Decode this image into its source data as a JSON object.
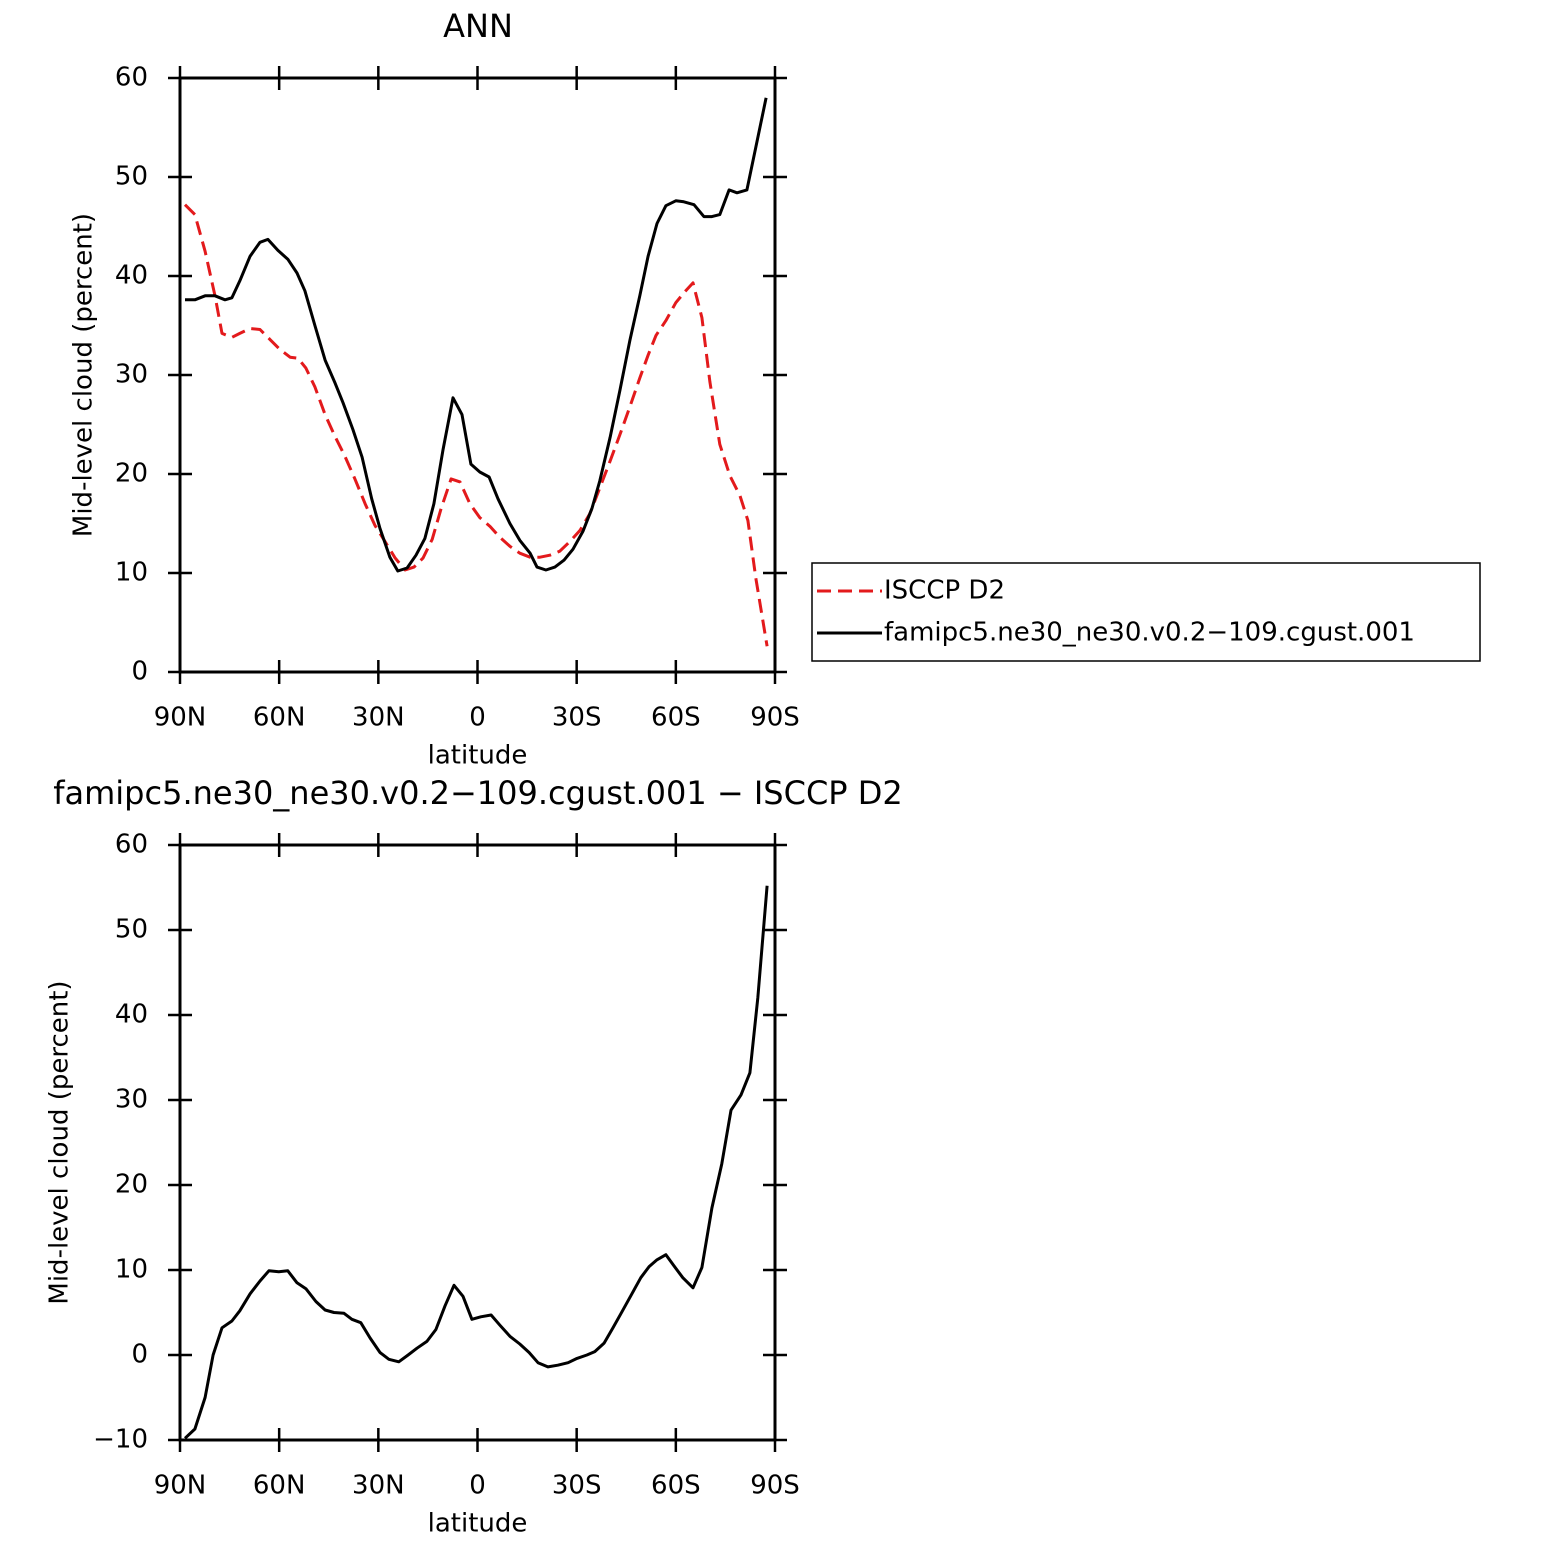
{
  "chart_data": [
    {
      "type": "line",
      "title": "ANN",
      "x_label": "latitude",
      "y_label": "Mid-level cloud (percent)",
      "xlim": [
        90,
        -90
      ],
      "xticks": [
        {
          "value": 90,
          "label": "90N"
        },
        {
          "value": 60,
          "label": "60N"
        },
        {
          "value": 30,
          "label": "30N"
        },
        0,
        {
          "value": -30,
          "label": "30S"
        },
        {
          "value": -60,
          "label": "60S"
        },
        {
          "value": -90,
          "label": "90S"
        }
      ],
      "ylim": [
        0,
        60
      ],
      "yticks": [
        0,
        10,
        20,
        30,
        40,
        50,
        60
      ],
      "legend": "right",
      "series": [
        {
          "name": "ISCCP D2",
          "color": "#e31a1c",
          "dash": true,
          "x": [
            88.5,
            85.5,
            82.4,
            79.4,
            77.3,
            74.3,
            71.9,
            68.8,
            65.8,
            62.8,
            59.8,
            56.7,
            54.3,
            51.9,
            49.2,
            46.1,
            43.1,
            40.1,
            37.1,
            34.0,
            31.0,
            28.0,
            24.9,
            21.9,
            19.2,
            16.5,
            13.7,
            11.0,
            8.0,
            5.3,
            2.3,
            -0.7,
            -3.8,
            -6.8,
            -9.8,
            -12.8,
            -15.9,
            -18.9,
            -21.9,
            -24.9,
            -28.0,
            -31.0,
            -34.0,
            -37.0,
            -40.1,
            -43.1,
            -46.1,
            -49.1,
            -51.6,
            -54.0,
            -57.0,
            -60.0,
            -62.7,
            -65.2,
            -67.9,
            -70.3,
            -73.3,
            -76.4,
            -79.4,
            -81.8,
            -84.2,
            -87.6
          ],
          "values": [
            47.2,
            46.2,
            42.5,
            38.0,
            34.2,
            33.8,
            34.2,
            34.7,
            34.6,
            33.6,
            32.6,
            31.8,
            31.7,
            30.7,
            28.8,
            26.0,
            23.8,
            21.8,
            19.5,
            17.0,
            14.8,
            13.2,
            11.5,
            10.3,
            10.6,
            11.5,
            13.4,
            16.5,
            19.5,
            19.2,
            17.0,
            15.6,
            14.7,
            13.6,
            12.7,
            12.0,
            11.6,
            11.6,
            11.8,
            12.2,
            13.2,
            14.3,
            16.0,
            18.6,
            21.3,
            24.0,
            26.8,
            29.7,
            32.0,
            34.0,
            35.5,
            37.3,
            38.4,
            39.3,
            35.8,
            29.3,
            23.0,
            19.8,
            17.8,
            15.3,
            9.5,
            2.6
          ]
        },
        {
          "name": "famipc5.ne30_ne30.v0.2−109.cgust.001",
          "color": "#000000",
          "dash": false,
          "x": [
            88.5,
            85.5,
            82.4,
            79.4,
            76.4,
            74.3,
            71.9,
            68.8,
            65.8,
            63.4,
            60.4,
            57.4,
            54.6,
            52.2,
            49.2,
            46.1,
            43.1,
            40.7,
            37.7,
            34.9,
            32.0,
            29.5,
            26.5,
            24.1,
            21.3,
            18.6,
            15.9,
            13.2,
            10.4,
            7.4,
            4.7,
            2.0,
            -0.7,
            -3.5,
            -6.2,
            -9.8,
            -12.8,
            -15.9,
            -18.0,
            -20.7,
            -23.4,
            -26.2,
            -28.9,
            -31.9,
            -34.6,
            -37.0,
            -40.1,
            -43.1,
            -46.1,
            -49.1,
            -51.6,
            -54.3,
            -57.0,
            -60.0,
            -62.4,
            -65.5,
            -68.5,
            -70.9,
            -73.3,
            -76.1,
            -78.5,
            -81.5,
            -84.2,
            -87.3
          ],
          "values": [
            37.6,
            37.6,
            38.0,
            38.0,
            37.6,
            37.8,
            39.5,
            42.0,
            43.4,
            43.7,
            42.6,
            41.7,
            40.3,
            38.5,
            35.0,
            31.5,
            29.2,
            27.2,
            24.5,
            21.7,
            17.5,
            14.5,
            11.6,
            10.2,
            10.5,
            11.8,
            13.5,
            17.0,
            22.5,
            27.7,
            26.0,
            21.0,
            20.2,
            19.7,
            17.5,
            15.0,
            13.3,
            12.0,
            10.6,
            10.3,
            10.6,
            11.3,
            12.4,
            14.2,
            16.5,
            19.3,
            23.7,
            28.5,
            33.5,
            38.0,
            42.0,
            45.3,
            47.1,
            47.6,
            47.5,
            47.2,
            46.0,
            46.0,
            46.2,
            48.7,
            48.4,
            48.7,
            53.0,
            58.0
          ]
        }
      ]
    },
    {
      "type": "line",
      "title": "famipc5.ne30_ne30.v0.2−109.cgust.001 − ISCCP D2",
      "x_label": "latitude",
      "y_label": "Mid-level cloud (percent)",
      "xlim": [
        90,
        -90
      ],
      "xticks": [
        {
          "value": 90,
          "label": "90N"
        },
        {
          "value": 60,
          "label": "60N"
        },
        {
          "value": 30,
          "label": "30N"
        },
        0,
        {
          "value": -30,
          "label": "30S"
        },
        {
          "value": -60,
          "label": "60S"
        },
        {
          "value": -90,
          "label": "90S"
        }
      ],
      "ylim": [
        -10,
        60
      ],
      "yticks": [
        {
          "value": -10,
          "label": "−10"
        },
        0,
        10,
        20,
        30,
        40,
        50,
        60
      ],
      "series": [
        {
          "color": "#000000",
          "dash": false,
          "x": [
            88.5,
            85.5,
            82.4,
            80.0,
            77.3,
            74.3,
            71.9,
            68.8,
            65.8,
            63.1,
            60.1,
            57.4,
            54.6,
            51.9,
            48.9,
            46.1,
            43.4,
            40.4,
            38.0,
            35.3,
            32.5,
            29.5,
            26.8,
            23.8,
            21.0,
            18.3,
            15.3,
            12.6,
            9.8,
            7.1,
            4.4,
            1.7,
            -1.0,
            -4.1,
            -6.8,
            -9.8,
            -12.8,
            -15.6,
            -18.3,
            -21.3,
            -24.3,
            -27.4,
            -30.1,
            -33.1,
            -35.5,
            -38.3,
            -41.0,
            -43.7,
            -46.7,
            -49.4,
            -51.9,
            -54.3,
            -57.0,
            -59.4,
            -62.1,
            -65.2,
            -67.9,
            -70.9,
            -73.9,
            -76.7,
            -79.7,
            -82.4,
            -84.8,
            -87.6
          ],
          "values": [
            -9.8,
            -8.7,
            -5.0,
            0.0,
            3.2,
            4.0,
            5.2,
            7.2,
            8.7,
            9.9,
            9.8,
            9.9,
            8.5,
            7.8,
            6.3,
            5.3,
            5.0,
            4.9,
            4.2,
            3.8,
            2.0,
            0.3,
            -0.5,
            -0.8,
            0.0,
            0.8,
            1.6,
            3.0,
            5.8,
            8.2,
            6.9,
            4.2,
            4.5,
            4.7,
            3.5,
            2.2,
            1.3,
            0.3,
            -0.9,
            -1.4,
            -1.2,
            -0.9,
            -0.4,
            0.0,
            0.4,
            1.4,
            3.2,
            5.1,
            7.2,
            9.1,
            10.4,
            11.2,
            11.8,
            10.5,
            9.1,
            7.9,
            10.3,
            17.3,
            22.5,
            28.8,
            30.6,
            33.2,
            42.0,
            55.2
          ]
        }
      ]
    }
  ]
}
